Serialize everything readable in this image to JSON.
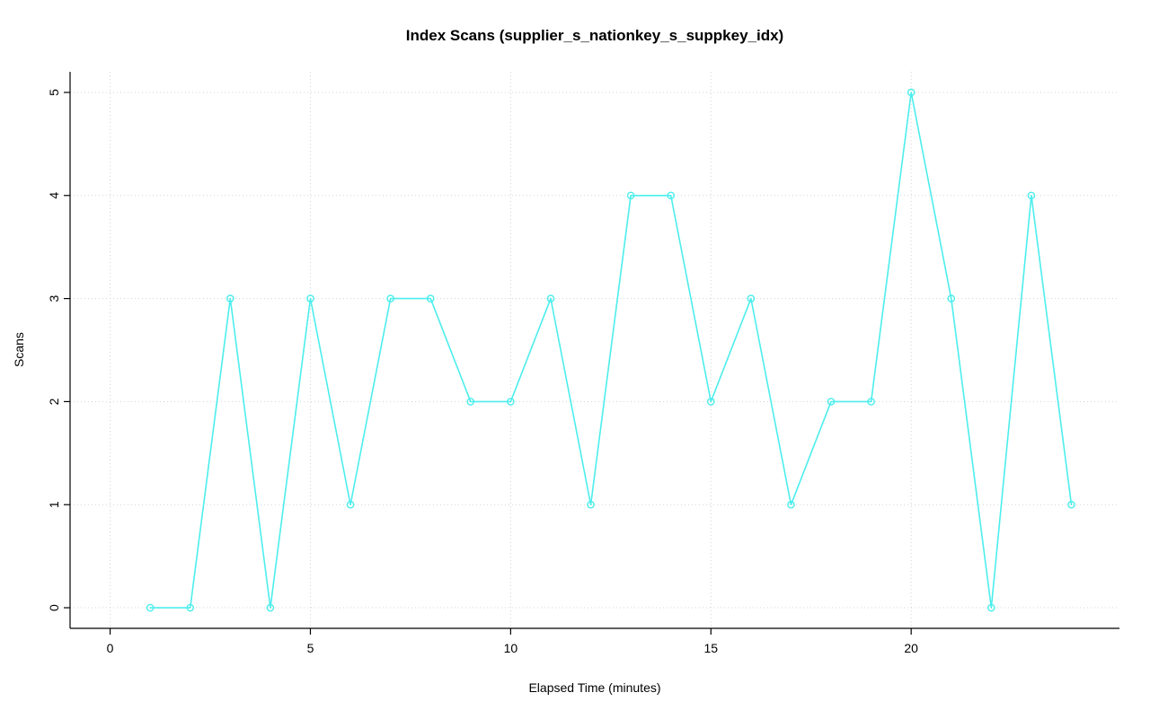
{
  "chart_data": {
    "type": "line",
    "title": "Index Scans (supplier_s_nationkey_s_suppkey_idx)",
    "xlabel": "Elapsed Time (minutes)",
    "ylabel": "Scans",
    "x": [
      1,
      2,
      3,
      4,
      5,
      6,
      7,
      8,
      9,
      10,
      11,
      12,
      13,
      14,
      15,
      16,
      17,
      18,
      19,
      20,
      21,
      22,
      23,
      24
    ],
    "y": [
      0,
      0,
      3,
      0,
      3,
      1,
      3,
      3,
      2,
      2,
      3,
      1,
      4,
      4,
      2,
      3,
      1,
      2,
      2,
      5,
      3,
      0,
      4,
      1
    ],
    "xticks": [
      0,
      5,
      10,
      15,
      20
    ],
    "yticks": [
      0,
      1,
      2,
      3,
      4,
      5
    ],
    "xlim": [
      -1.0,
      25.2
    ],
    "ylim": [
      -0.2,
      5.2
    ],
    "grid": true,
    "legend": "none",
    "line_color": "#4deded",
    "marker": "open-circle",
    "grid_color": "#d3d3d3",
    "axis_color": "#000000",
    "tick_label_color": "#000000"
  }
}
